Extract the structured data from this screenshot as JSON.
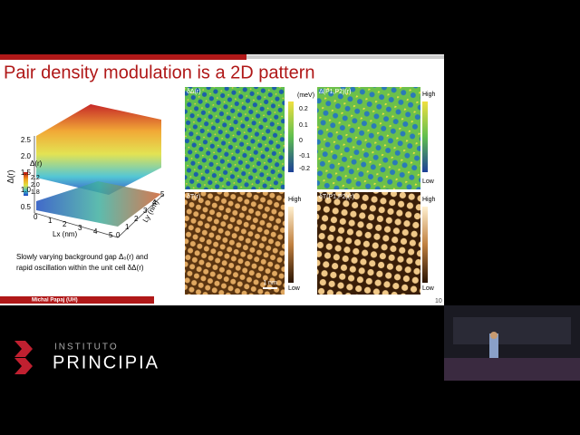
{
  "slide": {
    "title": "Pair density modulation is a 2D pattern",
    "caption": [
      "Slowly varying background gap Δ₀(r) and",
      "rapid oscillation within the unit cell δΔ(r)"
    ],
    "footer": "Michal Papaj (UH)",
    "page_number": "10"
  },
  "surface_plot": {
    "z_label": "Δ(r)",
    "z_ticks": [
      "2.5",
      "2.0",
      "1.5",
      "1.0",
      "0.5"
    ],
    "x_label": "Lx (nm)",
    "x_ticks": [
      "0",
      "1",
      "2",
      "3",
      "4",
      "5"
    ],
    "y_label": "Ly (nm)",
    "y_ticks": [
      "0",
      "1",
      "2",
      "3",
      "4",
      "5"
    ],
    "colorbar_label": "Δ(r)",
    "colorbar_ticks": [
      "2.2",
      "2.0",
      "1.8"
    ]
  },
  "panels": [
    {
      "label": "δΔ(r)",
      "unit": "(meV)",
      "ticks": [
        "0.2",
        "0.1",
        "0",
        "-0.1",
        "-0.2"
      ]
    },
    {
      "label": "Δ(P1,P2)(r)",
      "high": "High",
      "low": "Low"
    },
    {
      "label": "δT(r)",
      "high": "High",
      "low": "Low",
      "scale": "1 nm"
    },
    {
      "label": "δT(P1,P2)(r)",
      "high": "High",
      "low": "Low"
    }
  ],
  "logo": {
    "top": "INSTITUTO",
    "name": "PRINCIPIA"
  }
}
